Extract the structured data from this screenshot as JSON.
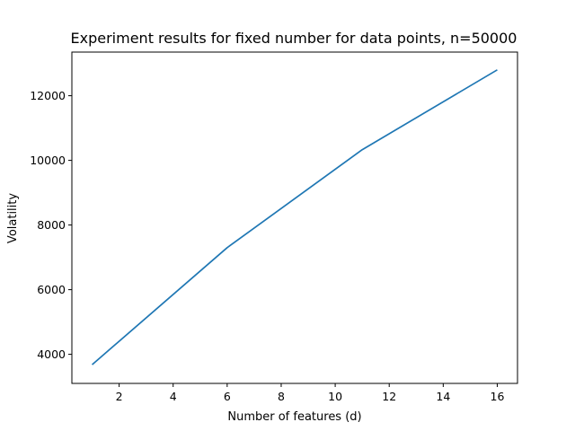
{
  "chart_data": {
    "type": "line",
    "title": "Experiment results for fixed number for data points, n=50000",
    "xlabel": "Number of features (d)",
    "ylabel": "Volatility",
    "xlim": [
      0.25,
      16.75
    ],
    "ylim": [
      3100,
      13350
    ],
    "xticks": [
      2,
      4,
      6,
      8,
      10,
      12,
      14,
      16
    ],
    "yticks": [
      4000,
      6000,
      8000,
      10000,
      12000
    ],
    "grid": false,
    "series": [
      {
        "color": "#1f77b4",
        "x": [
          1,
          6,
          11,
          16
        ],
        "y": [
          3680,
          7300,
          10330,
          12800
        ]
      }
    ]
  }
}
